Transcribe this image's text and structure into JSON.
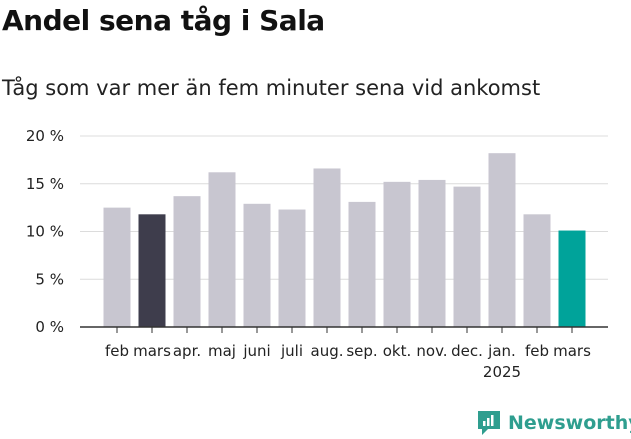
{
  "title": "Andel sena tåg i Sala",
  "subtitle": "Tåg som var mer än fem minuter sena vid ankomst",
  "brand": {
    "name": "Newsworthy",
    "color": "#2f9e8f"
  },
  "chart_data": {
    "type": "bar",
    "categories": [
      "feb",
      "mars",
      "apr.",
      "maj",
      "juni",
      "juli",
      "aug.",
      "sep.",
      "okt.",
      "nov.",
      "dec.",
      "jan.",
      "feb",
      "mars"
    ],
    "year_labels": [
      {
        "index": 11,
        "label": "2025"
      }
    ],
    "values": [
      12.5,
      11.8,
      13.7,
      16.2,
      12.9,
      12.3,
      16.6,
      13.1,
      15.2,
      15.4,
      14.7,
      18.2,
      11.8,
      10.1
    ],
    "bar_colors": [
      "#c8c6d0",
      "#3e3d4c",
      "#c8c6d0",
      "#c8c6d0",
      "#c8c6d0",
      "#c8c6d0",
      "#c8c6d0",
      "#c8c6d0",
      "#c8c6d0",
      "#c8c6d0",
      "#c8c6d0",
      "#c8c6d0",
      "#c8c6d0",
      "#00a39a"
    ],
    "yticks": [
      0,
      5,
      10,
      15,
      20
    ],
    "ytick_labels": [
      "0 %",
      "5 %",
      "10 %",
      "15 %",
      "20 %"
    ],
    "ylim": [
      0,
      20
    ],
    "grid": true,
    "legend": "none"
  }
}
